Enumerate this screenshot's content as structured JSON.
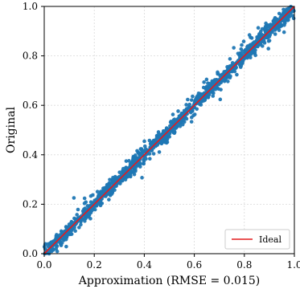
{
  "chart_data": {
    "type": "scatter",
    "xlabel": "Approximation (RMSE = 0.015)",
    "ylabel": "Original",
    "xlim": [
      0.0,
      1.0
    ],
    "ylim": [
      0.0,
      1.0
    ],
    "xticks": [
      "0.0",
      "0.2",
      "0.4",
      "0.6",
      "0.8",
      "1.0"
    ],
    "yticks": [
      "0.0",
      "0.2",
      "0.4",
      "0.6",
      "0.8",
      "1.0"
    ],
    "grid": true,
    "legend": {
      "position": "bottom-right",
      "entries": [
        {
          "label": "Ideal",
          "color": "#e41a1c"
        }
      ]
    },
    "colors": {
      "points": "#1f77b4",
      "ideal_line": "#e41a1c",
      "grid": "#d9d9d9"
    },
    "series": [
      {
        "type": "scatter",
        "approx_rmse": 0.015,
        "point_count_estimate": 1400
      },
      {
        "name": "Ideal",
        "type": "line",
        "x": [
          0.0,
          1.0
        ],
        "y": [
          0.0,
          1.0
        ]
      }
    ]
  }
}
